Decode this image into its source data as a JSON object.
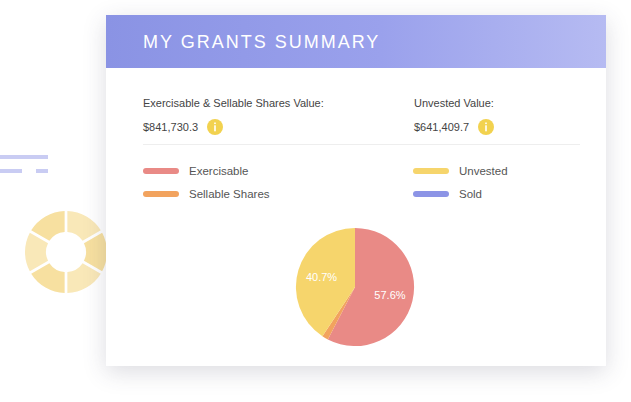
{
  "header": {
    "title": "MY GRANTS SUMMARY"
  },
  "summary": [
    {
      "label": "Exercisable & Sellable Shares Value:",
      "value": "$841,730.3"
    },
    {
      "label": "Unvested Value:",
      "value": "$641,409.7"
    }
  ],
  "chart_data": {
    "type": "pie",
    "categories": [
      "Exercisable",
      "Sellable Shares",
      "Unvested",
      "Sold"
    ],
    "values": [
      57.6,
      1.7,
      40.7,
      0
    ],
    "value_labels": [
      "57.6%",
      null,
      "40.7%",
      null
    ],
    "colors": [
      "#e98a86",
      "#f2a35e",
      "#f6d56c",
      "#8c94e6"
    ],
    "data_labels": true,
    "legend": "top"
  }
}
